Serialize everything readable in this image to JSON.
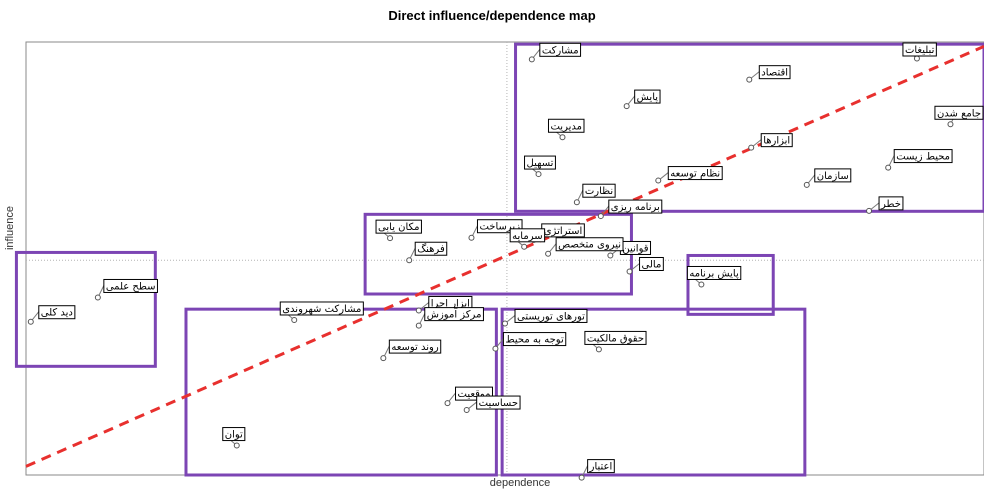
{
  "chart_data": {
    "type": "scatter",
    "title": "Direct influence/dependence map",
    "xlabel": "dependence",
    "ylabel": "influence",
    "xlim": [
      0,
      1
    ],
    "ylim": [
      0,
      1
    ],
    "grid": "dotted crosshair at means",
    "mean_lines": {
      "x": 0.502,
      "y": 0.496
    },
    "diagonal": {
      "from": [
        0,
        0.02
      ],
      "to": [
        1,
        0.99
      ],
      "color": "#e8302e",
      "style": "dashed"
    },
    "colors": {
      "point": "#555555",
      "label_fill": "#ffffff",
      "label_border": "#000000",
      "group_box": "#7c45b4"
    },
    "groups": [
      {
        "name": "",
        "x": [
          0.511,
          1.0
        ],
        "y": [
          0.609,
          0.995
        ]
      },
      {
        "name": "",
        "x": [
          0.354,
          0.632
        ],
        "y": [
          0.418,
          0.602
        ]
      },
      {
        "name": "",
        "x": [
          0.691,
          0.78
        ],
        "y": [
          0.371,
          0.507
        ]
      },
      {
        "name": "",
        "x": [
          -0.01,
          0.135
        ],
        "y": [
          0.251,
          0.514
        ]
      },
      {
        "name": "",
        "x": [
          0.167,
          0.491
        ],
        "y": [
          0.0,
          0.383
        ]
      },
      {
        "name": "",
        "x": [
          0.497,
          0.813
        ],
        "y": [
          0.0,
          0.383
        ]
      }
    ],
    "points": [
      {
        "label": "مشارکت",
        "x": 0.528,
        "y": 0.96
      },
      {
        "label": "اقتصاد",
        "x": 0.755,
        "y": 0.913
      },
      {
        "label": "تبلیغات",
        "x": 0.93,
        "y": 0.962
      },
      {
        "label": "جامع شدن",
        "x": 0.965,
        "y": 0.81
      },
      {
        "label": "پایش",
        "x": 0.627,
        "y": 0.852
      },
      {
        "label": "ابزارها",
        "x": 0.757,
        "y": 0.756
      },
      {
        "label": "مدیریت",
        "x": 0.56,
        "y": 0.78
      },
      {
        "label": "محیط زیست",
        "x": 0.9,
        "y": 0.71
      },
      {
        "label": "سازمان",
        "x": 0.815,
        "y": 0.67
      },
      {
        "label": "نظام توسعه",
        "x": 0.66,
        "y": 0.68
      },
      {
        "label": "تسهیل",
        "x": 0.535,
        "y": 0.695
      },
      {
        "label": "نظارت",
        "x": 0.575,
        "y": 0.63
      },
      {
        "label": "برنامه ریزی",
        "x": 0.6,
        "y": 0.598
      },
      {
        "label": "خطر",
        "x": 0.88,
        "y": 0.61
      },
      {
        "label": "مکان یابی",
        "x": 0.38,
        "y": 0.547
      },
      {
        "label": "زیرساخت",
        "x": 0.465,
        "y": 0.548
      },
      {
        "label": "استراتژی",
        "x": 0.53,
        "y": 0.543
      },
      {
        "label": "قوانین",
        "x": 0.61,
        "y": 0.507
      },
      {
        "label": "سرمایه",
        "x": 0.52,
        "y": 0.527
      },
      {
        "label": "فرهنگ",
        "x": 0.4,
        "y": 0.496
      },
      {
        "label": "نیروی متخصص",
        "x": 0.545,
        "y": 0.511
      },
      {
        "label": "مالی",
        "x": 0.63,
        "y": 0.47
      },
      {
        "label": "پایش برنامه",
        "x": 0.705,
        "y": 0.44
      },
      {
        "label": "سطح علمی",
        "x": 0.075,
        "y": 0.41
      },
      {
        "label": "دید کلی",
        "x": 0.005,
        "y": 0.354
      },
      {
        "label": "ابزار اجرا",
        "x": 0.41,
        "y": 0.38
      },
      {
        "label": "مشارکت شهروندی",
        "x": 0.28,
        "y": 0.358
      },
      {
        "label": "مرکز آموزش",
        "x": 0.41,
        "y": 0.345
      },
      {
        "label": "توجه به محیط",
        "x": 0.49,
        "y": 0.292
      },
      {
        "label": "تورهای توریستی",
        "x": 0.5,
        "y": 0.35
      },
      {
        "label": "حقوق مالکیت",
        "x": 0.598,
        "y": 0.29
      },
      {
        "label": "روند توسعه",
        "x": 0.373,
        "y": 0.27
      },
      {
        "label": "موقعیت",
        "x": 0.44,
        "y": 0.166
      },
      {
        "label": "حساسیت",
        "x": 0.46,
        "y": 0.15
      },
      {
        "label": "توان",
        "x": 0.22,
        "y": 0.068
      },
      {
        "label": "اعتبار",
        "x": 0.58,
        "y": -0.006
      }
    ]
  }
}
